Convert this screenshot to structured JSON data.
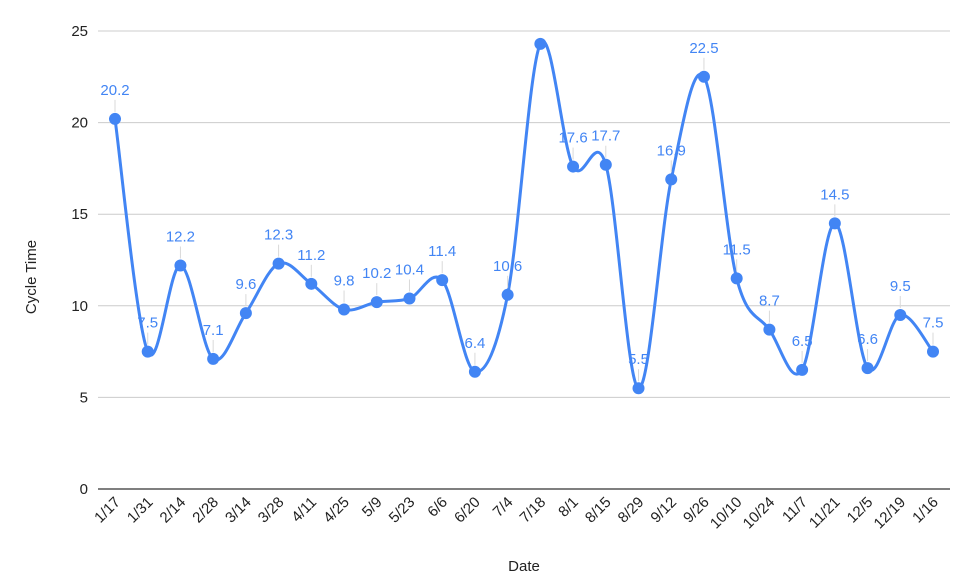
{
  "chart_data": {
    "type": "line",
    "smooth": true,
    "xlabel": "Date",
    "ylabel": "Cycle Time",
    "ylim": [
      0,
      25
    ],
    "yticks": [
      0,
      5,
      10,
      15,
      20,
      25
    ],
    "grid": true,
    "categories": [
      "1/17",
      "1/31",
      "2/14",
      "2/28",
      "3/14",
      "3/28",
      "4/11",
      "4/25",
      "5/9",
      "5/23",
      "6/6",
      "6/20",
      "7/4",
      "7/18",
      "8/1",
      "8/15",
      "8/29",
      "9/12",
      "9/26",
      "10/10",
      "10/24",
      "11/7",
      "11/21",
      "12/5",
      "12/19",
      "1/16"
    ],
    "series": [
      {
        "values": [
          20.2,
          7.5,
          12.2,
          7.1,
          9.6,
          12.3,
          11.2,
          9.8,
          10.2,
          10.4,
          11.4,
          6.4,
          10.6,
          24.3,
          17.6,
          17.7,
          5.5,
          16.9,
          22.5,
          11.5,
          8.7,
          6.5,
          14.5,
          6.6,
          9.5,
          7.5
        ],
        "labels": [
          "20.2",
          "7.5",
          "12.2",
          "7.1",
          "9.6",
          "12.3",
          "11.2",
          "9.8",
          "10.2",
          "10.4",
          "11.4",
          "6.4",
          "10.6",
          "",
          "17.6",
          "17.7",
          "5.5",
          "16.9",
          "22.5",
          "11.5",
          "8.7",
          "6.5",
          "14.5",
          "6.6",
          "9.5",
          "7.5"
        ],
        "color": "#4285f4"
      }
    ],
    "colors": {
      "line": "#4285f4",
      "label": "#4285f4",
      "grid": "#cccccc",
      "baseline": "#333333"
    }
  }
}
